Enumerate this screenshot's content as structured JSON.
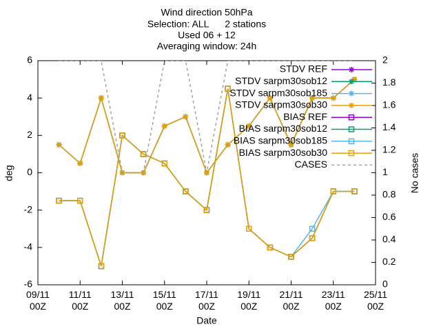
{
  "chart_data": {
    "type": "line",
    "title": "Wind direction 50hPa",
    "subtitle": [
      "Selection: ALL      2 stations",
      "Used 06 + 12",
      "Averaging window: 24h"
    ],
    "xlabel": "Date",
    "ylabel": "deg",
    "y2label": "No cases",
    "x": [
      10,
      11,
      12,
      13,
      14,
      15,
      16,
      17,
      18,
      19,
      20,
      21,
      22,
      23,
      24
    ],
    "xlim": [
      9,
      25
    ],
    "xticks": [
      {
        "value": 9,
        "label": "09/11\n00Z"
      },
      {
        "value": 11,
        "label": "11/11\n00Z"
      },
      {
        "value": 13,
        "label": "13/11\n00Z"
      },
      {
        "value": 15,
        "label": "15/11\n00Z"
      },
      {
        "value": 17,
        "label": "17/11\n00Z"
      },
      {
        "value": 19,
        "label": "19/11\n00Z"
      },
      {
        "value": 21,
        "label": "21/11\n00Z"
      },
      {
        "value": 23,
        "label": "23/11\n00Z"
      },
      {
        "value": 25,
        "label": "25/11\n00Z"
      }
    ],
    "ylim": [
      -6,
      6
    ],
    "yticks": [
      -6,
      -4,
      -2,
      0,
      2,
      4,
      6
    ],
    "y2lim": [
      0,
      2
    ],
    "y2ticks": [
      0,
      0.2,
      0.4,
      0.6,
      0.8,
      1,
      1.2,
      1.4,
      1.6,
      1.8,
      2
    ],
    "legend": "upper right",
    "series": [
      {
        "name": "STDV REF",
        "color": "#9400d3",
        "marker": "star",
        "values": [
          1.5,
          0.5,
          4,
          0,
          0,
          2.5,
          3,
          0,
          1.5,
          2.5,
          4,
          1.5,
          4,
          4,
          5
        ]
      },
      {
        "name": "STDV sarpm30sob12",
        "color": "#009e73",
        "marker": "star",
        "values": [
          1.5,
          0.5,
          4,
          0,
          0,
          2.5,
          3,
          0,
          1.5,
          2.5,
          4,
          1.5,
          4,
          4,
          5
        ]
      },
      {
        "name": "STDV sarpm30sob185",
        "color": "#56b4e9",
        "marker": "star",
        "values": [
          1.5,
          0.5,
          4,
          0,
          0,
          2.5,
          3,
          0,
          1.5,
          2.5,
          4,
          1.5,
          4,
          4,
          5
        ]
      },
      {
        "name": "STDV sarpm30sob30",
        "color": "#e69f00",
        "marker": "star",
        "values": [
          1.5,
          0.5,
          4,
          0,
          0,
          2.5,
          3,
          0,
          1.5,
          2.5,
          4,
          1.5,
          4,
          4,
          5
        ]
      },
      {
        "name": "BIAS REF",
        "color": "#9400d3",
        "marker": "square",
        "values": [
          -1.5,
          -1.5,
          -5,
          2,
          1,
          0.5,
          -1,
          -2,
          4.5,
          -3,
          -4,
          -4.5,
          -3.5,
          -1,
          -1
        ]
      },
      {
        "name": "BIAS sarpm30sob12",
        "color": "#009e73",
        "marker": "square",
        "values": [
          -1.5,
          -1.5,
          -5,
          2,
          1,
          0.5,
          -1,
          -2,
          4.5,
          -3,
          -4,
          -4.5,
          -3.5,
          -1,
          -1
        ]
      },
      {
        "name": "BIAS sarpm30sob185",
        "color": "#56b4e9",
        "marker": "square",
        "values": [
          -1.5,
          -1.5,
          -5,
          2,
          1,
          0.5,
          -1,
          -2,
          4.5,
          -3,
          -4,
          -4.5,
          -3,
          -1,
          -1
        ]
      },
      {
        "name": "BIAS sarpm30sob30",
        "color": "#e69f00",
        "marker": "square",
        "values": [
          -1.5,
          -1.5,
          -5,
          2,
          1,
          0.5,
          -1,
          -2,
          4.5,
          -3,
          -4,
          -4.5,
          -3.5,
          -1,
          -1
        ]
      },
      {
        "name": "CASES",
        "color": "#a0a0a0",
        "dashed": true,
        "axis": "y2",
        "values": [
          2,
          2,
          2,
          1,
          1,
          2,
          2,
          1,
          2,
          2,
          2,
          2,
          2,
          2,
          2
        ]
      }
    ]
  }
}
